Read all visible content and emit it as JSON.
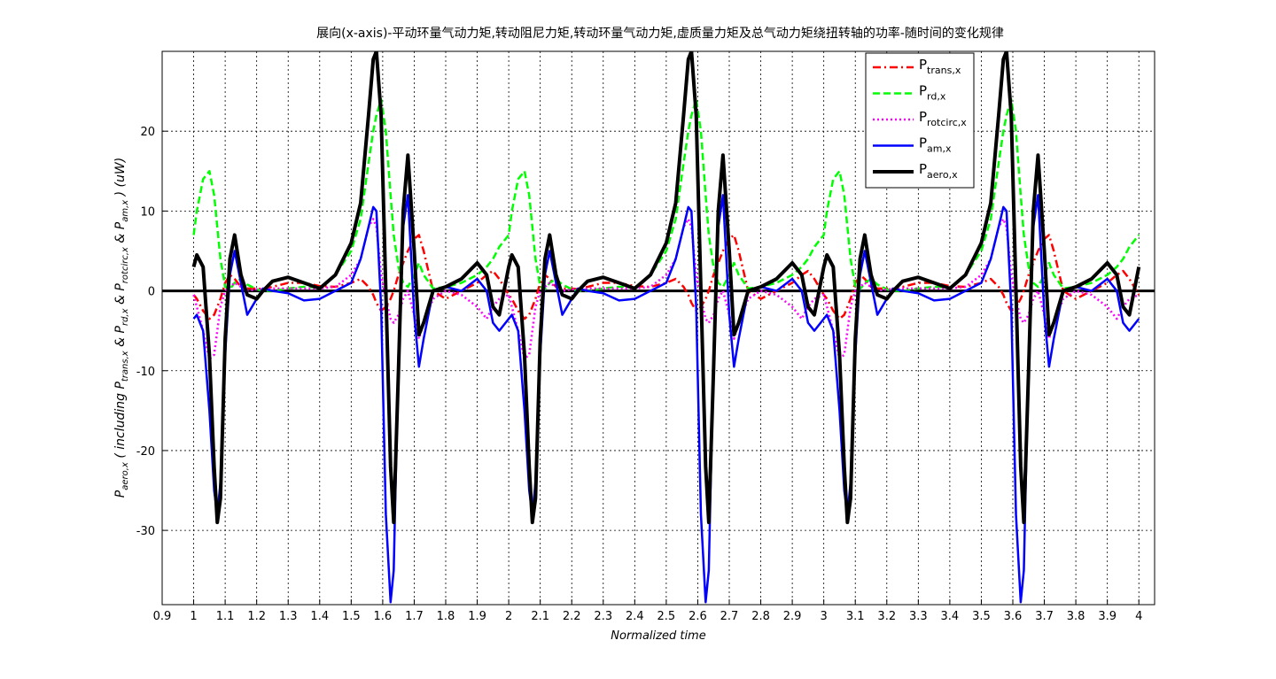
{
  "chart_data": {
    "type": "line",
    "title": "展向(x-axis)-平动环量气动力矩,转动阻尼力矩,转动环量气动力矩,虚质量力矩及总气动力矩绕扭转轴的功率-随时间的变化规律",
    "xlabel": "Normalized time",
    "ylabel": [
      "P",
      "aero,x",
      " ( including P",
      "trans,x",
      " & P",
      "rd,x",
      " & P",
      "rotcirc,x",
      " & P",
      "am,x",
      " )  (uW)"
    ],
    "xlim": [
      0.9,
      4.05
    ],
    "ylim": [
      -39.3,
      30
    ],
    "xticks": [
      0.9,
      1,
      1.1,
      1.2,
      1.3,
      1.4,
      1.5,
      1.6,
      1.7,
      1.8,
      1.9,
      2,
      2.1,
      2.2,
      2.3,
      2.4,
      2.5,
      2.6,
      2.7,
      2.8,
      2.9,
      3,
      3.1,
      3.2,
      3.3,
      3.4,
      3.5,
      3.6,
      3.7,
      3.8,
      3.9,
      4
    ],
    "yticks": [
      -30,
      -20,
      -10,
      0,
      10,
      20
    ],
    "grid": true,
    "legend": "northeast",
    "x": [
      1,
      1.01,
      1.03,
      1.05,
      1.065,
      1.075,
      1.085,
      1.1,
      1.115,
      1.13,
      1.15,
      1.17,
      1.2,
      1.22,
      1.25,
      1.3,
      1.35,
      1.4,
      1.45,
      1.5,
      1.53,
      1.555,
      1.57,
      1.58,
      1.595,
      1.61,
      1.625,
      1.635,
      1.65,
      1.665,
      1.68,
      1.7,
      1.715,
      1.73,
      1.76,
      1.8,
      1.85,
      1.9,
      1.93,
      1.95,
      1.97,
      2,
      2.01,
      2.03,
      2.05,
      2.065,
      2.075,
      2.085,
      2.1,
      2.115,
      2.13,
      2.15,
      2.17,
      2.2,
      2.22,
      2.25,
      2.3,
      2.35,
      2.4,
      2.45,
      2.5,
      2.53,
      2.555,
      2.57,
      2.58,
      2.595,
      2.61,
      2.625,
      2.635,
      2.65,
      2.665,
      2.68,
      2.7,
      2.715,
      2.73,
      2.76,
      2.8,
      2.85,
      2.9,
      2.93,
      2.95,
      2.97,
      3,
      3.01,
      3.03,
      3.05,
      3.065,
      3.075,
      3.085,
      3.1,
      3.115,
      3.13,
      3.15,
      3.17,
      3.2,
      3.22,
      3.25,
      3.3,
      3.35,
      3.4,
      3.45,
      3.5,
      3.53,
      3.555,
      3.57,
      3.58,
      3.595,
      3.61,
      3.625,
      3.635,
      3.65,
      3.665,
      3.68,
      3.7,
      3.715,
      3.73,
      3.76,
      3.8,
      3.85,
      3.9,
      3.93,
      3.95,
      3.97,
      4
    ],
    "series": [
      {
        "name": [
          "P",
          "trans,x"
        ],
        "color": "#ff0000",
        "style": "dashdot",
        "width": 2.5,
        "values": [
          -0.5,
          -1,
          -2.5,
          -3.5,
          -3,
          -2,
          -1,
          1,
          2,
          1.5,
          0.5,
          0.3,
          0.3,
          0.2,
          0.5,
          1,
          1,
          0.6,
          0.5,
          1,
          1.5,
          0.5,
          -0.5,
          -1.5,
          -2.5,
          -2,
          -1,
          0,
          2,
          3.5,
          5,
          6.5,
          7,
          5,
          0,
          -1,
          0,
          1,
          2,
          2.5,
          1.5,
          -0.5,
          -1,
          -2.5,
          -3.5,
          -3,
          -2,
          -1,
          1,
          2,
          1.5,
          0.5,
          0.3,
          0.3,
          0.2,
          0.5,
          1,
          1,
          0.6,
          0.5,
          1,
          1.5,
          0.5,
          -0.5,
          -1.5,
          -2.5,
          -2,
          -1,
          0,
          2,
          3.5,
          5,
          6.5,
          7,
          5,
          0,
          -1,
          0,
          1,
          2,
          2.5,
          1.5,
          -0.5,
          -1,
          -2.5,
          -3.5,
          -3,
          -2,
          -1,
          1,
          2,
          1.5,
          0.5,
          0.3,
          0.3,
          0.2,
          0.5,
          1,
          1,
          0.6,
          0.5,
          1,
          1.5,
          0.5,
          -0.5,
          -1.5,
          -2.5,
          -2,
          -1,
          0,
          2,
          3.5,
          5,
          6.5,
          7,
          5,
          0,
          -1,
          0,
          1,
          2,
          2.5,
          1.5,
          -0.5
        ]
      },
      {
        "name": [
          "P",
          "rd,x"
        ],
        "color": "#00ff00",
        "style": "dashed",
        "width": 2.5,
        "values": [
          7,
          10,
          14,
          15,
          12,
          8,
          4,
          0.5,
          0.2,
          1,
          1.5,
          0.8,
          0.2,
          0,
          0,
          0.3,
          0.5,
          0.4,
          2,
          5,
          9,
          16,
          20,
          22,
          24,
          20,
          12,
          7,
          3,
          1,
          0.5,
          2,
          3.5,
          2,
          0.3,
          0.5,
          1,
          2,
          3,
          4,
          5.5,
          7,
          10,
          14,
          15,
          12,
          8,
          4,
          0.5,
          0.2,
          1,
          1.5,
          0.8,
          0.2,
          0,
          0,
          0.3,
          0.5,
          0.4,
          2,
          5,
          9,
          16,
          20,
          22,
          24,
          20,
          12,
          7,
          3,
          1,
          0.5,
          2,
          3.5,
          2,
          0.3,
          0.5,
          1,
          2,
          3,
          4,
          5.5,
          7,
          10,
          14,
          15,
          12,
          8,
          4,
          0.5,
          0.2,
          1,
          1.5,
          0.8,
          0.2,
          0,
          0,
          0.3,
          0.5,
          0.4,
          2,
          5,
          9,
          16,
          20,
          22,
          24,
          20,
          12,
          7,
          3,
          1,
          0.5,
          2,
          3.5,
          2,
          0.3,
          0.5,
          1,
          2,
          3,
          4,
          5.5,
          7
        ]
      },
      {
        "name": [
          "P",
          "rotcirc,x"
        ],
        "color": "#ff00ff",
        "style": "dotted",
        "width": 2.5,
        "values": [
          -0.5,
          -2,
          -5,
          -8.5,
          -8,
          -5,
          -2,
          0,
          0.5,
          1,
          0.5,
          0,
          0.2,
          0.2,
          0.3,
          0.3,
          0.3,
          0.3,
          0.5,
          2,
          4,
          8,
          9,
          8,
          2,
          -1,
          -3.5,
          -4,
          -3,
          -1,
          0,
          -3,
          -6,
          -4,
          -1,
          0,
          -0.5,
          -2,
          -3.5,
          -2,
          -1,
          -0.5,
          -2,
          -5,
          -8.5,
          -8,
          -5,
          -2,
          0,
          0.5,
          1,
          0.5,
          0,
          0.2,
          0.2,
          0.3,
          0.3,
          0.3,
          0.3,
          0.5,
          2,
          4,
          8,
          9,
          8,
          2,
          -1,
          -3.5,
          -4,
          -3,
          -1,
          0,
          -3,
          -6,
          -4,
          -1,
          0,
          -0.5,
          -2,
          -3.5,
          -2,
          -1,
          -0.5,
          -2,
          -5,
          -8.5,
          -8,
          -5,
          -2,
          0,
          0.5,
          1,
          0.5,
          0,
          0.2,
          0.2,
          0.3,
          0.3,
          0.3,
          0.3,
          0.5,
          2,
          4,
          8,
          9,
          8,
          2,
          -1,
          -3.5,
          -4,
          -3,
          -1,
          0,
          -3,
          -6,
          -4,
          -1,
          0,
          -0.5,
          -2,
          -3.5,
          -2,
          -1,
          -0.5
        ]
      },
      {
        "name": [
          "P",
          "am,x"
        ],
        "color": "#0000ff",
        "style": "solid",
        "width": 2.5,
        "values": [
          -3.5,
          -3,
          -5,
          -15,
          -25,
          -28,
          -24,
          -8,
          2,
          5,
          1,
          -3,
          -1,
          0.3,
          0,
          -0.3,
          -1.2,
          -1,
          0,
          1,
          4,
          8,
          10.5,
          10,
          -2,
          -28,
          -39,
          -35,
          -8,
          8,
          12,
          -3,
          -9.5,
          -6,
          0,
          0.5,
          0,
          1.5,
          0,
          -4,
          -5,
          -3.5,
          -3,
          -5,
          -15,
          -25,
          -28,
          -24,
          -8,
          2,
          5,
          1,
          -3,
          -1,
          0.3,
          0,
          -0.3,
          -1.2,
          -1,
          0,
          1,
          4,
          8,
          10.5,
          10,
          -2,
          -28,
          -39,
          -35,
          -8,
          8,
          12,
          -3,
          -9.5,
          -6,
          0,
          0.5,
          0,
          1.5,
          0,
          -4,
          -5,
          -3.5,
          -3,
          -5,
          -15,
          -25,
          -28,
          -24,
          -8,
          2,
          5,
          1,
          -3,
          -1,
          0.3,
          0,
          -0.3,
          -1.2,
          -1,
          0,
          1,
          4,
          8,
          10.5,
          10,
          -2,
          -28,
          -39,
          -35,
          -8,
          8,
          12,
          -3,
          -9.5,
          -6,
          0,
          0.5,
          0,
          1.5,
          0,
          -4,
          -5,
          -3.5
        ]
      },
      {
        "name": [
          "P",
          "aero,x"
        ],
        "color": "#000000",
        "style": "solid",
        "width": 4,
        "values": [
          3,
          4.5,
          3,
          -8,
          -22,
          -29,
          -26,
          -6,
          4,
          7,
          2,
          -0.5,
          -1,
          0,
          1.2,
          1.7,
          1,
          0.3,
          2,
          6,
          11,
          22,
          29,
          30,
          22,
          0,
          -22,
          -29,
          -10,
          10,
          17,
          5,
          -5.5,
          -4,
          0,
          0.5,
          1.5,
          3.5,
          2,
          -2,
          -3,
          3,
          4.5,
          3,
          -8,
          -22,
          -29,
          -26,
          -6,
          4,
          7,
          2,
          -0.5,
          -1,
          0,
          1.2,
          1.7,
          1,
          0.3,
          2,
          6,
          11,
          22,
          29,
          30,
          22,
          0,
          -22,
          -29,
          -10,
          10,
          17,
          5,
          -5.5,
          -4,
          0,
          0.5,
          1.5,
          3.5,
          2,
          -2,
          -3,
          3,
          4.5,
          3,
          -8,
          -22,
          -29,
          -26,
          -6,
          4,
          7,
          2,
          -0.5,
          -1,
          0,
          1.2,
          1.7,
          1,
          0.3,
          2,
          6,
          11,
          22,
          29,
          30,
          22,
          0,
          -22,
          -29,
          -10,
          10,
          17,
          5,
          -5.5,
          -4,
          0,
          0.5,
          1.5,
          3.5,
          2,
          -2,
          -3,
          3
        ]
      }
    ]
  }
}
